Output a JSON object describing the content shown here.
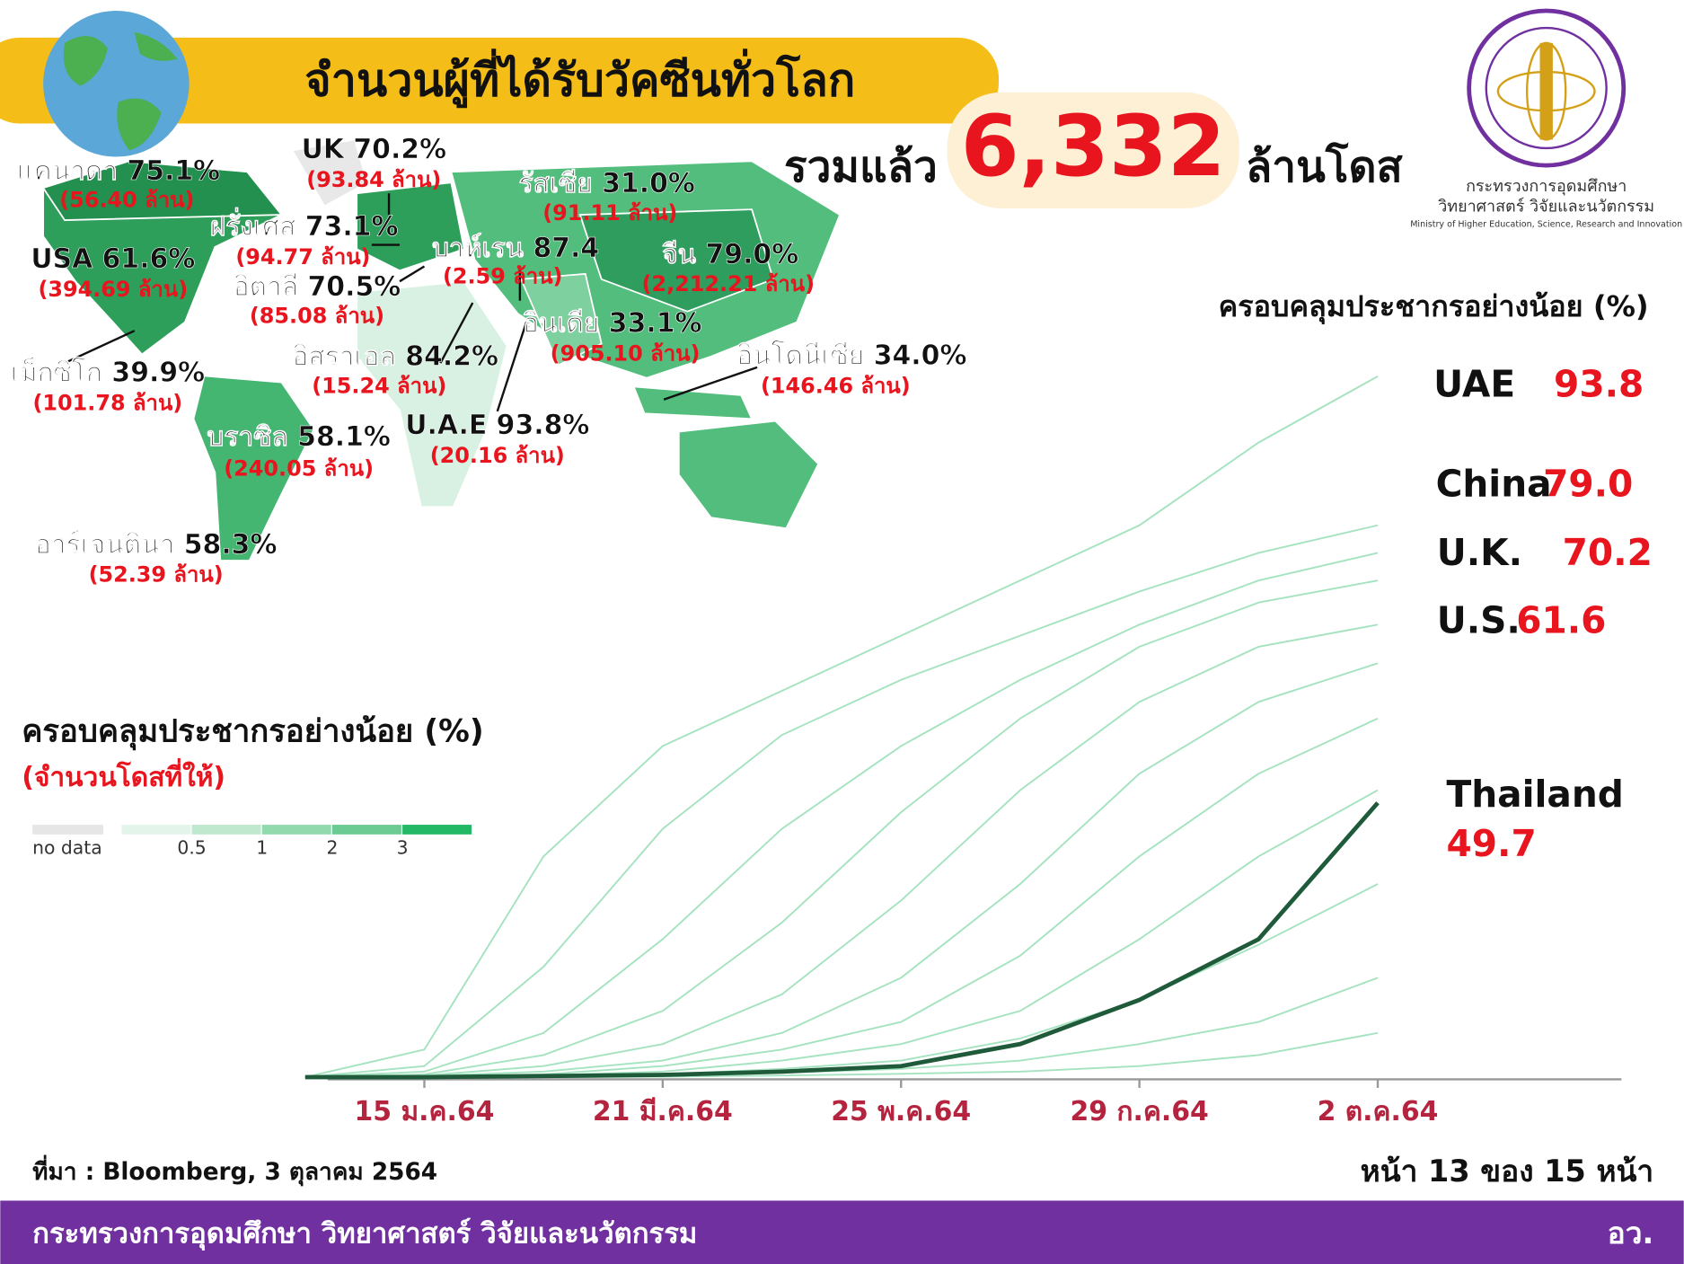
{
  "header": {
    "title": "จำนวนผู้ที่ได้รับวัคซีนทั่วโลก",
    "total_prefix": "รวมแล้ว",
    "total": "6,332",
    "total_unit": "ล้านโดส"
  },
  "logo": {
    "line1": "กระทรวงการอุดมศึกษา",
    "line2": "วิทยาศาสตร์ วิจัยและนวัตกรรม",
    "line3": "Ministry of Higher Education, Science, Research and Innovation"
  },
  "map": {
    "labels": [
      {
        "label": "แคนาดา 75.1%",
        "detail": "(56.40 ล้าน)"
      },
      {
        "label": "UK 70.2%",
        "detail": "(93.84 ล้าน)"
      },
      {
        "label": "รัสเซีย 31.0%",
        "detail": "(91.11 ล้าน)"
      },
      {
        "label": "ฝรั่งเศส 73.1%",
        "detail": "(94.77 ล้าน)"
      },
      {
        "label": "USA 61.6%",
        "detail": "(394.69 ล้าน)"
      },
      {
        "label": "บาห์เรน 87.4",
        "detail": "(2.59 ล้าน)"
      },
      {
        "label": "จีน 79.0%",
        "detail": "(2,212.21 ล้าน)"
      },
      {
        "label": "อิตาลี 70.5%",
        "detail": "(85.08 ล้าน)"
      },
      {
        "label": "อินเดีย 33.1%",
        "detail": "(905.10 ล้าน)"
      },
      {
        "label": "อิสราเอล 84.2%",
        "detail": "(15.24 ล้าน)"
      },
      {
        "label": "อินโดนีเซีย 34.0%",
        "detail": "(146.46 ล้าน)"
      },
      {
        "label": "เม็กซิโก 39.9%",
        "detail": "(101.78 ล้าน)"
      },
      {
        "label": "U.A.E 93.8%",
        "detail": "(20.16 ล้าน)"
      },
      {
        "label": "บราซิล 58.1%",
        "detail": "(240.05 ล้าน)"
      },
      {
        "label": "อาร์เจนตินา 58.3%",
        "detail": "(52.39 ล้าน)"
      }
    ],
    "legend": {
      "title": "ครอบคลุมประชากรอย่างน้อย (%)",
      "subtitle": "(จำนวนโดสที่ให้)",
      "no_data": "no data",
      "ticks": [
        0.5,
        1,
        2,
        3
      ]
    }
  },
  "chart_data": {
    "type": "line",
    "title": "ครอบคลุมประชากรอย่างน้อย (%)",
    "categories": [
      null,
      "15 ม.ค.64",
      null,
      "21 มี.ค.64",
      null,
      "25 พ.ค.64",
      null,
      "29 ก.ค.64",
      null,
      "2 ต.ค.64"
    ],
    "ylim": [
      0,
      130
    ],
    "series": [
      {
        "color": "#8fdcb0",
        "values": [
          0,
          5,
          40,
          60,
          70,
          80,
          90,
          100,
          115,
          127
        ]
      },
      {
        "color": "#8fdcb0",
        "values": [
          0,
          2,
          20,
          45,
          62,
          72,
          80,
          88,
          95,
          100
        ]
      },
      {
        "color": "#8fdcb0",
        "values": [
          0,
          1,
          8,
          25,
          45,
          60,
          72,
          82,
          90,
          95
        ]
      },
      {
        "color": "#8fdcb0",
        "values": [
          0,
          0.5,
          4,
          12,
          28,
          48,
          65,
          78,
          86,
          90
        ]
      },
      {
        "color": "#8fdcb0",
        "values": [
          0,
          0.3,
          2,
          6,
          15,
          32,
          52,
          68,
          78,
          82
        ]
      },
      {
        "color": "#8fdcb0",
        "values": [
          0,
          0.2,
          1,
          3,
          8,
          18,
          35,
          55,
          68,
          75
        ]
      },
      {
        "color": "#8fdcb0",
        "values": [
          0,
          0.1,
          0.5,
          2,
          5,
          10,
          22,
          40,
          55,
          65
        ]
      },
      {
        "color": "#8fdcb0",
        "values": [
          0,
          0,
          0.3,
          1,
          3,
          6,
          12,
          25,
          40,
          52
        ]
      },
      {
        "color": "#8fdcb0",
        "values": [
          0,
          0,
          0.2,
          0.5,
          1.5,
          3,
          7,
          14,
          24,
          35
        ]
      },
      {
        "color": "#8fdcb0",
        "values": [
          0,
          0,
          0,
          0.3,
          0.8,
          1.5,
          3,
          6,
          10,
          18
        ]
      },
      {
        "color": "#8fdcb0",
        "values": [
          0,
          0,
          0,
          0.1,
          0.3,
          0.6,
          1,
          2,
          4,
          8
        ]
      },
      {
        "name": "Thailand",
        "color": "#1f5a3a",
        "values": [
          0,
          0,
          0.2,
          0.4,
          1,
          2,
          6,
          14,
          25,
          49.7
        ]
      }
    ],
    "highlights": [
      {
        "name": "UAE",
        "value": 93.8
      },
      {
        "name": "China",
        "value": 79.0
      },
      {
        "name": "U.K.",
        "value": 70.2
      },
      {
        "name": "U.S.",
        "value": 61.6
      }
    ]
  },
  "footer": {
    "source": "ที่มา : Bloomberg, 3 ตุลาคม 2564",
    "page": "หน้า 13 ของ 15 หน้า",
    "ministry": "กระทรวงการอุดมศึกษา วิทยาศาสตร์ วิจัยและนวัตกรรม",
    "abbr": "อว."
  }
}
